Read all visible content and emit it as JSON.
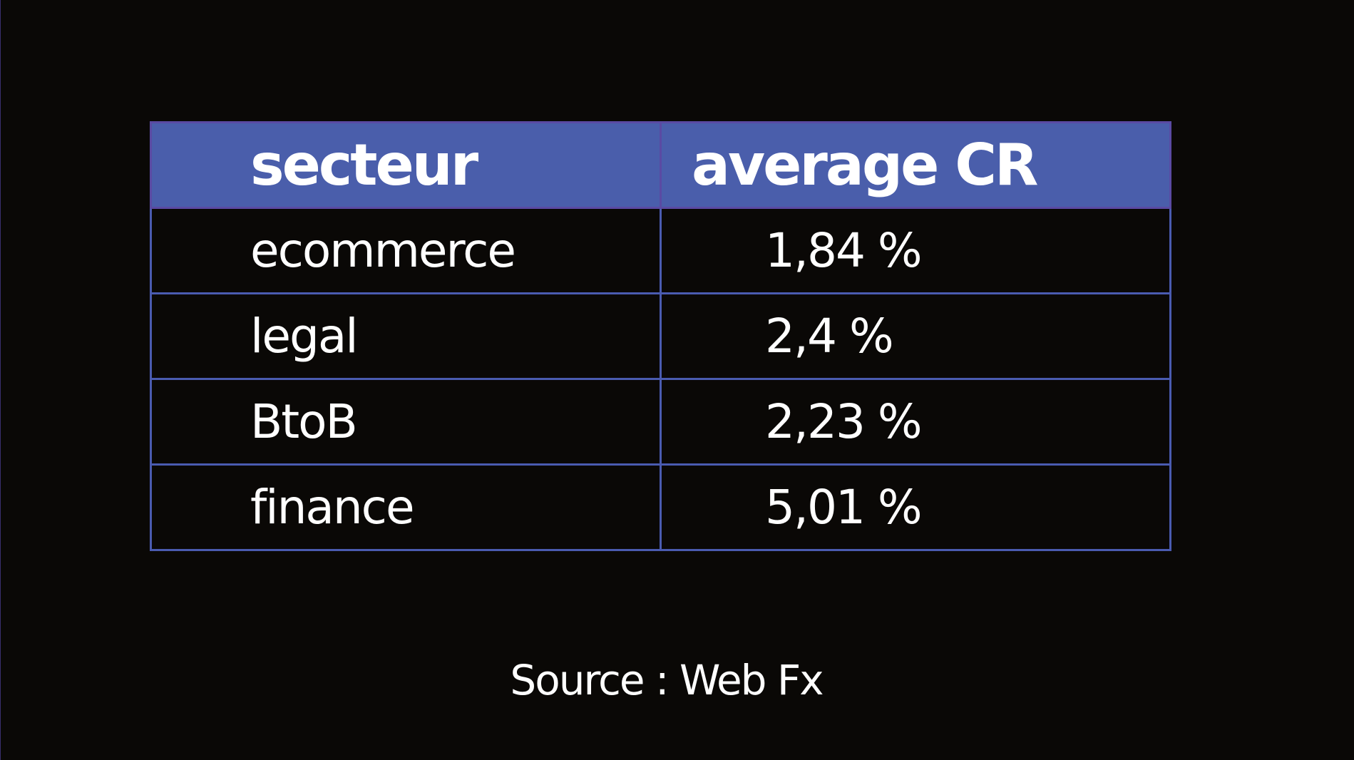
{
  "chart_data": {
    "type": "table",
    "columns": [
      "secteur",
      "average CR"
    ],
    "rows": [
      [
        "ecommerce",
        "1,84 %"
      ],
      [
        "legal",
        "2,4 %"
      ],
      [
        "BtoB",
        "2,23 %"
      ],
      [
        "finance",
        "5,01 %"
      ]
    ],
    "values": [
      1.84,
      2.4,
      2.23,
      5.01
    ],
    "unit": "%"
  },
  "footer": {
    "source": "Source : Web Fx"
  },
  "colors": {
    "background": "#0a0806",
    "header": "#4a5eab",
    "border": "#4a5bb0",
    "text": "#ffffff"
  }
}
